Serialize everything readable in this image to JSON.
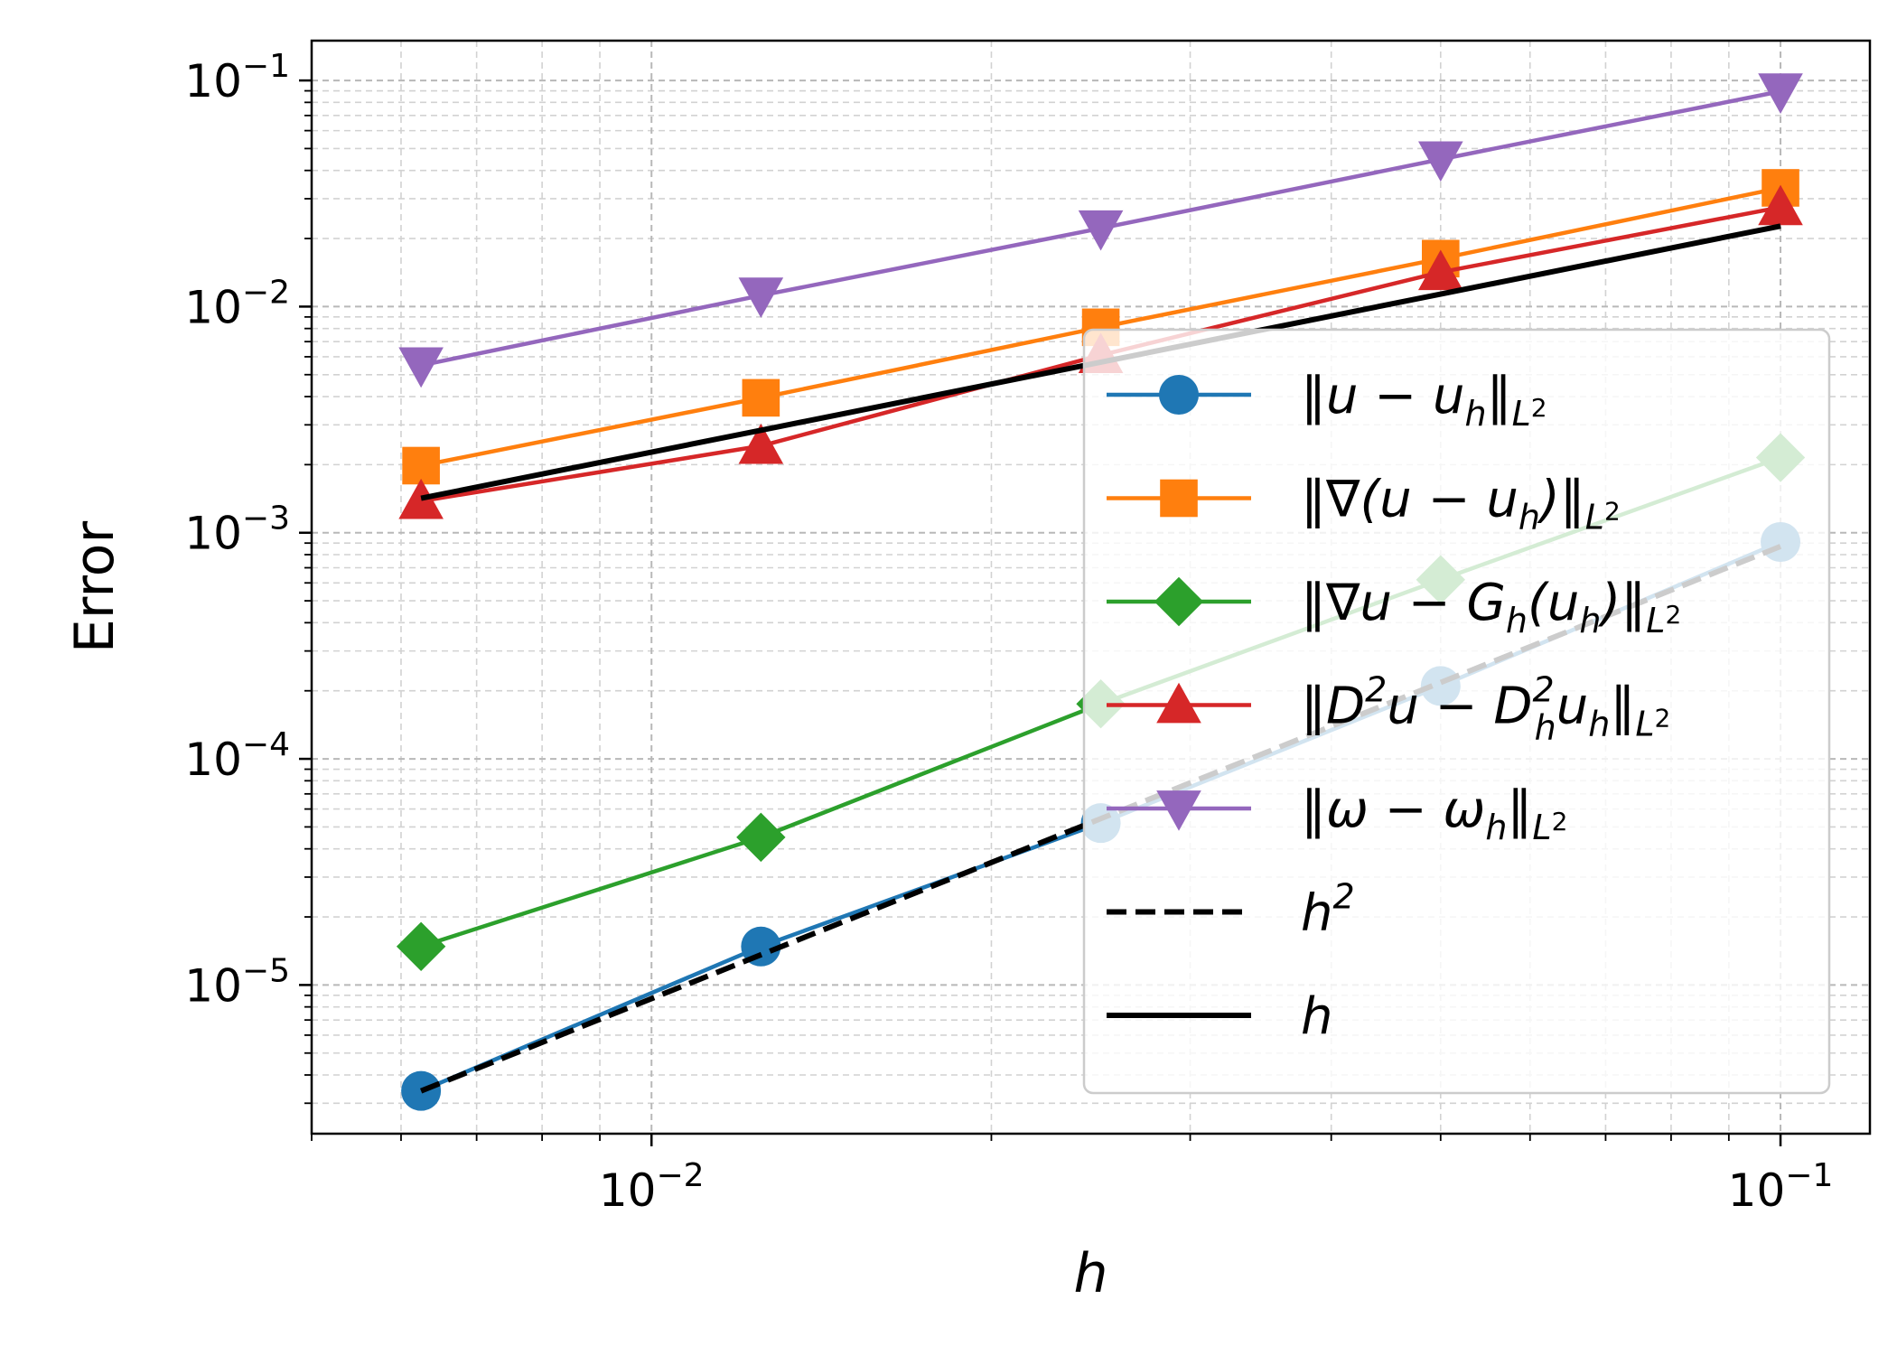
{
  "chart_data": {
    "type": "line",
    "xscale": "log",
    "yscale": "log",
    "xlabel": "h",
    "ylabel": "Error",
    "xlim": [
      0.005,
      0.12
    ],
    "ylim": [
      2.2e-06,
      0.15
    ],
    "grid": true,
    "legend_position": "lower-right",
    "x": [
      0.00625,
      0.0125,
      0.025,
      0.05,
      0.1
    ],
    "series": [
      {
        "name": "‖u − u_h‖_{L²}",
        "color": "#1f77b4",
        "marker": "circle",
        "values": [
          3.4e-06,
          1.48e-05,
          5.2e-05,
          0.00021,
          0.00091
        ]
      },
      {
        "name": "‖∇(u − u_h)‖_{L²}",
        "color": "#ff7f0e",
        "marker": "square",
        "values": [
          0.00198,
          0.00395,
          0.0081,
          0.0163,
          0.0335
        ]
      },
      {
        "name": "‖∇u − G_h(u_h)‖_{L²}",
        "color": "#2ca02c",
        "marker": "diamond",
        "values": [
          1.48e-05,
          4.5e-05,
          0.000175,
          0.00062,
          0.00215
        ]
      },
      {
        "name": "‖D²u − D²_h u_h‖_{L²}",
        "color": "#d62728",
        "marker": "triangle-up",
        "values": [
          0.00138,
          0.00242,
          0.0061,
          0.0142,
          0.0275
        ]
      },
      {
        "name": "‖ω − ω_h‖_{L²}",
        "color": "#9467bd",
        "marker": "triangle-down",
        "values": [
          0.0055,
          0.0112,
          0.0222,
          0.0448,
          0.0895
        ]
      },
      {
        "name": "h²",
        "color": "#000000",
        "style": "dashed",
        "marker": "none",
        "values": [
          3.4e-06,
          1.36e-05,
          5.44e-05,
          0.0002176,
          0.00087
        ]
      },
      {
        "name": "h",
        "color": "#000000",
        "style": "solid",
        "marker": "none",
        "values": [
          0.00142,
          0.00284,
          0.00568,
          0.01136,
          0.0227
        ]
      }
    ],
    "xticks": [
      0.01,
      0.1
    ],
    "yticks": [
      1e-05,
      0.0001,
      0.001,
      0.01,
      0.1
    ],
    "xtick_labels": [
      {
        "base": "10",
        "exp": "−2"
      },
      {
        "base": "10",
        "exp": "−1"
      }
    ],
    "ytick_labels": [
      {
        "base": "10",
        "exp": "−5"
      },
      {
        "base": "10",
        "exp": "−4"
      },
      {
        "base": "10",
        "exp": "−3"
      },
      {
        "base": "10",
        "exp": "−2"
      },
      {
        "base": "10",
        "exp": "−1"
      }
    ]
  }
}
